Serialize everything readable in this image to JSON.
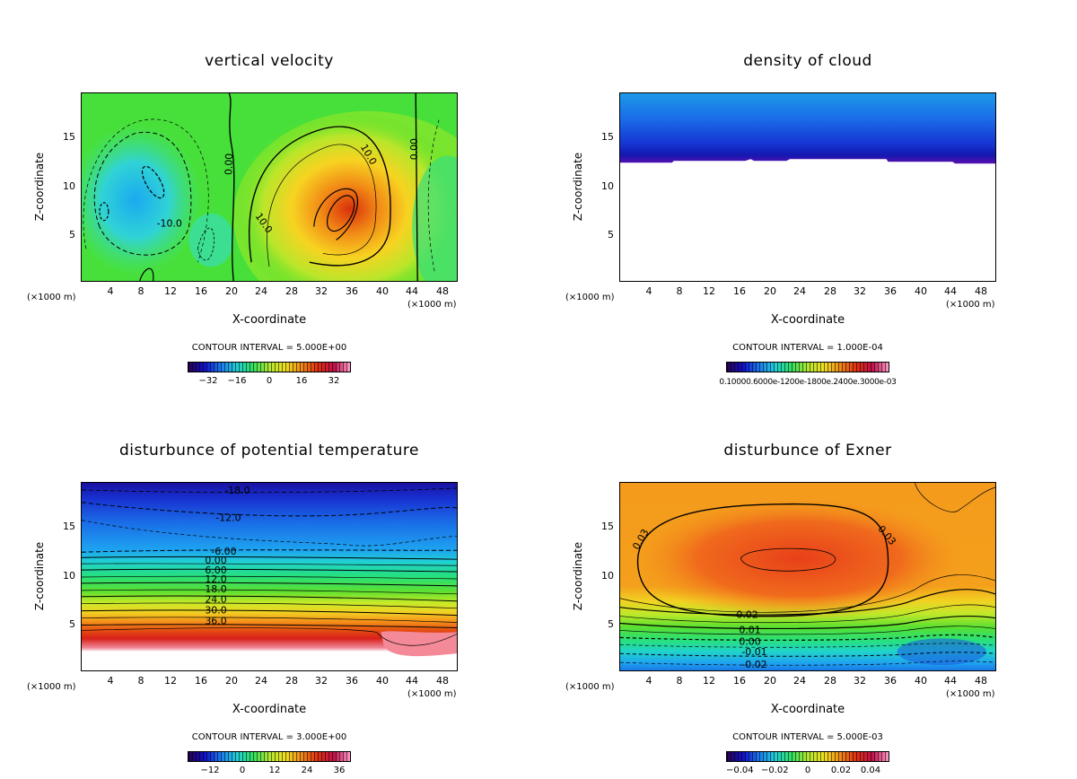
{
  "panels": [
    {
      "title": "vertical velocity",
      "ylabel": "Z-coordinate",
      "xlabel": "X-coordinate",
      "x_unit_left": "(×1000 m)",
      "x_unit_right": "(×1000 m)",
      "contour_interval": "CONTOUR INTERVAL = 5.000E+00",
      "colorbar_ticks": [
        "−32",
        "−16",
        "0",
        "16",
        "32"
      ],
      "contour_labels": [
        "10.0",
        "0.00",
        "0.00",
        "-10.0",
        "10.0"
      ]
    },
    {
      "title": "density of cloud",
      "ylabel": "Z-coordinate",
      "xlabel": "X-coordinate",
      "x_unit_left": "(×1000 m)",
      "x_unit_right": "(×1000 m)",
      "contour_interval": "CONTOUR INTERVAL = 1.000E-04",
      "colorbar_string": "0.10000.6000e-1200e-1800e.2400e.3000e-03"
    },
    {
      "title": "disturbunce of potential temperature",
      "ylabel": "Z-coordinate",
      "xlabel": "X-coordinate",
      "x_unit_left": "(×1000 m)",
      "x_unit_right": "(×1000 m)",
      "contour_interval": "CONTOUR INTERVAL = 3.000E+00",
      "colorbar_ticks": [
        "−12",
        "0",
        "12",
        "24",
        "36"
      ],
      "contour_labels": [
        "-18.0",
        "-12.0",
        "-6.00",
        "0.00",
        "6.00",
        "12.0",
        "18.0",
        "24.0",
        "30.0",
        "36.0"
      ]
    },
    {
      "title": "disturbunce of Exner",
      "ylabel": "Z-coordinate",
      "xlabel": "X-coordinate",
      "x_unit_left": "(×1000 m)",
      "x_unit_right": "(×1000 m)",
      "contour_interval": "CONTOUR INTERVAL = 5.000E-03",
      "colorbar_ticks": [
        "−0.04",
        "−0.02",
        "0",
        "0.02",
        "0.04"
      ],
      "contour_labels": [
        "0.03",
        "0.03",
        "0.02",
        "0.01",
        "0.00",
        "-0.01",
        "-0.02"
      ]
    }
  ],
  "chart_data": [
    {
      "type": "heatmap",
      "title": "vertical velocity",
      "xlabel": "X-coordinate",
      "ylabel": "Z-coordinate",
      "xlim": [
        0,
        50
      ],
      "ylim": [
        0,
        20
      ],
      "xticks": [
        4,
        8,
        12,
        16,
        20,
        24,
        28,
        32,
        36,
        40,
        44,
        48
      ],
      "yticks": [
        5,
        10,
        15
      ],
      "colorbar_range": [
        -40,
        40
      ],
      "contour_interval": 5.0,
      "features": [
        {
          "kind": "updraft-max",
          "x": 34,
          "z": 7.5,
          "value": 30
        },
        {
          "kind": "downdraft-min",
          "x": 3,
          "z": 7,
          "value": -20
        },
        {
          "kind": "downdraft-min",
          "x": 9,
          "z": 11,
          "value": -15
        }
      ]
    },
    {
      "type": "heatmap",
      "title": "density of cloud",
      "xlabel": "X-coordinate",
      "ylabel": "Z-coordinate",
      "xlim": [
        0,
        50
      ],
      "ylim": [
        0,
        20
      ],
      "xticks": [
        4,
        8,
        12,
        16,
        20,
        24,
        28,
        32,
        36,
        40,
        44,
        48
      ],
      "yticks": [
        5,
        10,
        15
      ],
      "contour_interval": 0.0001,
      "cloud_base_z": 12.8,
      "cloud_top_z": 20
    },
    {
      "type": "heatmap",
      "title": "disturbunce of potential temperature",
      "xlabel": "X-coordinate",
      "ylabel": "Z-coordinate",
      "xlim": [
        0,
        50
      ],
      "ylim": [
        0,
        20
      ],
      "xticks": [
        4,
        8,
        12,
        16,
        20,
        24,
        28,
        32,
        36,
        40,
        44,
        48
      ],
      "yticks": [
        5,
        10,
        15
      ],
      "colorbar_range": [
        -18,
        42
      ],
      "contour_interval": 3.0,
      "contour_levels": [
        -18,
        -12,
        -6,
        0,
        6,
        12,
        18,
        24,
        30,
        36
      ]
    },
    {
      "type": "heatmap",
      "title": "disturbunce of Exner",
      "xlabel": "X-coordinate",
      "ylabel": "Z-coordinate",
      "xlim": [
        0,
        50
      ],
      "ylim": [
        0,
        20
      ],
      "xticks": [
        4,
        8,
        12,
        16,
        20,
        24,
        28,
        32,
        36,
        40,
        44,
        48
      ],
      "yticks": [
        5,
        10,
        15
      ],
      "colorbar_range": [
        -0.05,
        0.05
      ],
      "contour_interval": 0.005,
      "contour_levels": [
        -0.02,
        -0.01,
        0.0,
        0.01,
        0.02,
        0.03
      ]
    }
  ]
}
